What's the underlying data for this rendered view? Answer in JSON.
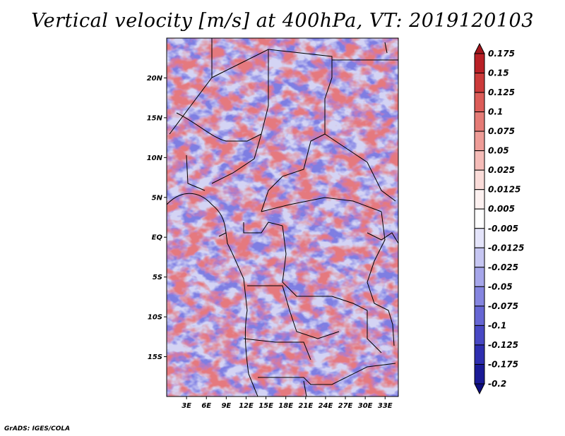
{
  "title": "Vertical velocity [m/s] at 400hPa, VT: 2019120103",
  "credit": "GrADS: IGES/COLA",
  "map": {
    "lon_range": [
      0,
      35
    ],
    "lat_range": [
      -20,
      25
    ],
    "lon_ticks": [
      "3E",
      "6E",
      "9E",
      "12E",
      "15E",
      "18E",
      "21E",
      "24E",
      "27E",
      "30E",
      "33E"
    ],
    "lat_ticks": [
      "20N",
      "15N",
      "10N",
      "5N",
      "EQ",
      "5S",
      "10S",
      "15S"
    ],
    "field": "vertical velocity, red positive / blue negative"
  },
  "colorbar": {
    "levels": [
      "0.175",
      "0.15",
      "0.125",
      "0.1",
      "0.075",
      "0.05",
      "0.025",
      "0.0125",
      "0.005",
      "-0.005",
      "-0.0125",
      "-0.025",
      "-0.05",
      "-0.075",
      "-0.1",
      "-0.125",
      "-0.175",
      "-0.2"
    ],
    "colors": [
      "#a1161c",
      "#b92026",
      "#cc3a3a",
      "#dc5c58",
      "#e57b76",
      "#ee9c97",
      "#f5bcb8",
      "#fadcd9",
      "#fdf1f0",
      "#ffffff",
      "#e4e4fa",
      "#c6c6f2",
      "#a6a6ea",
      "#8585e0",
      "#6666d4",
      "#4848c4",
      "#2e2eb0",
      "#1a1a96",
      "#0e0e80"
    ]
  }
}
